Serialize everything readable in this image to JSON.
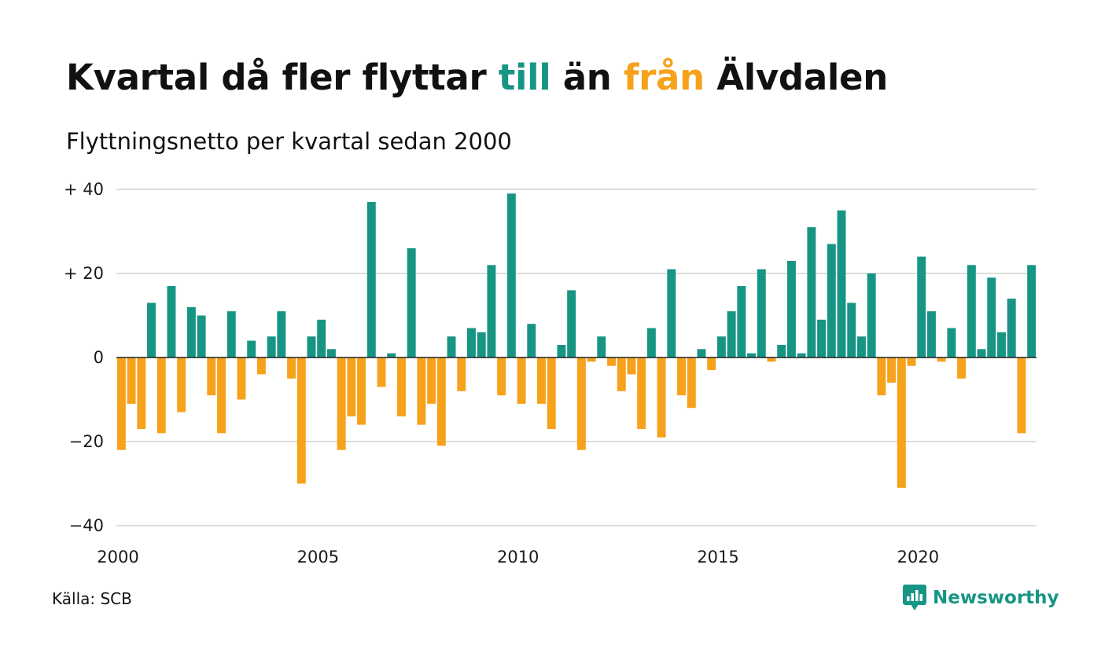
{
  "header": {
    "title_part1": "Kvartal då fler flyttar ",
    "title_till": "till",
    "title_part2": " än ",
    "title_fran": "från",
    "title_part3": " Älvdalen",
    "subtitle": "Flyttningsnetto per kvartal sedan 2000"
  },
  "footer": {
    "source": "Källa: SCB",
    "brand": "Newsworthy",
    "brand_icon": "bar-chart-speech-bubble-icon"
  },
  "colors": {
    "positive": "#179584",
    "negative": "#F6A21C",
    "grid": "#DDDDDD",
    "zero_line": "#222222",
    "text": "#111111"
  },
  "chart_data": {
    "type": "bar",
    "title": "Kvartal då fler flyttar till än från Älvdalen",
    "subtitle": "Flyttningsnetto per kvartal sedan 2000",
    "xlabel": "",
    "ylabel": "",
    "x_start": "2000-Q1",
    "x_ticks": [
      "2000",
      "2005",
      "2010",
      "2015",
      "2020"
    ],
    "y_ticks": [
      {
        "value": 40,
        "label": "+ 40"
      },
      {
        "value": 20,
        "label": "+ 20"
      },
      {
        "value": 0,
        "label": "0"
      },
      {
        "value": -20,
        "label": "−20"
      },
      {
        "value": -40,
        "label": "−40"
      }
    ],
    "ylim": [
      -40,
      40
    ],
    "grid": true,
    "legend": "none",
    "values": [
      -22,
      -11,
      -17,
      13,
      -18,
      17,
      -13,
      12,
      10,
      -9,
      -18,
      11,
      -10,
      4,
      -4,
      5,
      11,
      -5,
      -30,
      5,
      9,
      2,
      -22,
      -14,
      -16,
      37,
      -7,
      1,
      -14,
      26,
      -16,
      -11,
      -21,
      5,
      -8,
      7,
      6,
      22,
      -9,
      39,
      -11,
      8,
      -11,
      -17,
      3,
      16,
      -22,
      -1,
      5,
      -2,
      -8,
      -4,
      -17,
      7,
      -19,
      21,
      -9,
      -12,
      2,
      -3,
      5,
      11,
      17,
      1,
      21,
      -1,
      3,
      23,
      1,
      31,
      9,
      27,
      35,
      13,
      5,
      20,
      -9,
      -6,
      -31,
      -2,
      24,
      11,
      -1,
      7,
      -5,
      22,
      2,
      19,
      6,
      14,
      -18,
      22
    ]
  }
}
